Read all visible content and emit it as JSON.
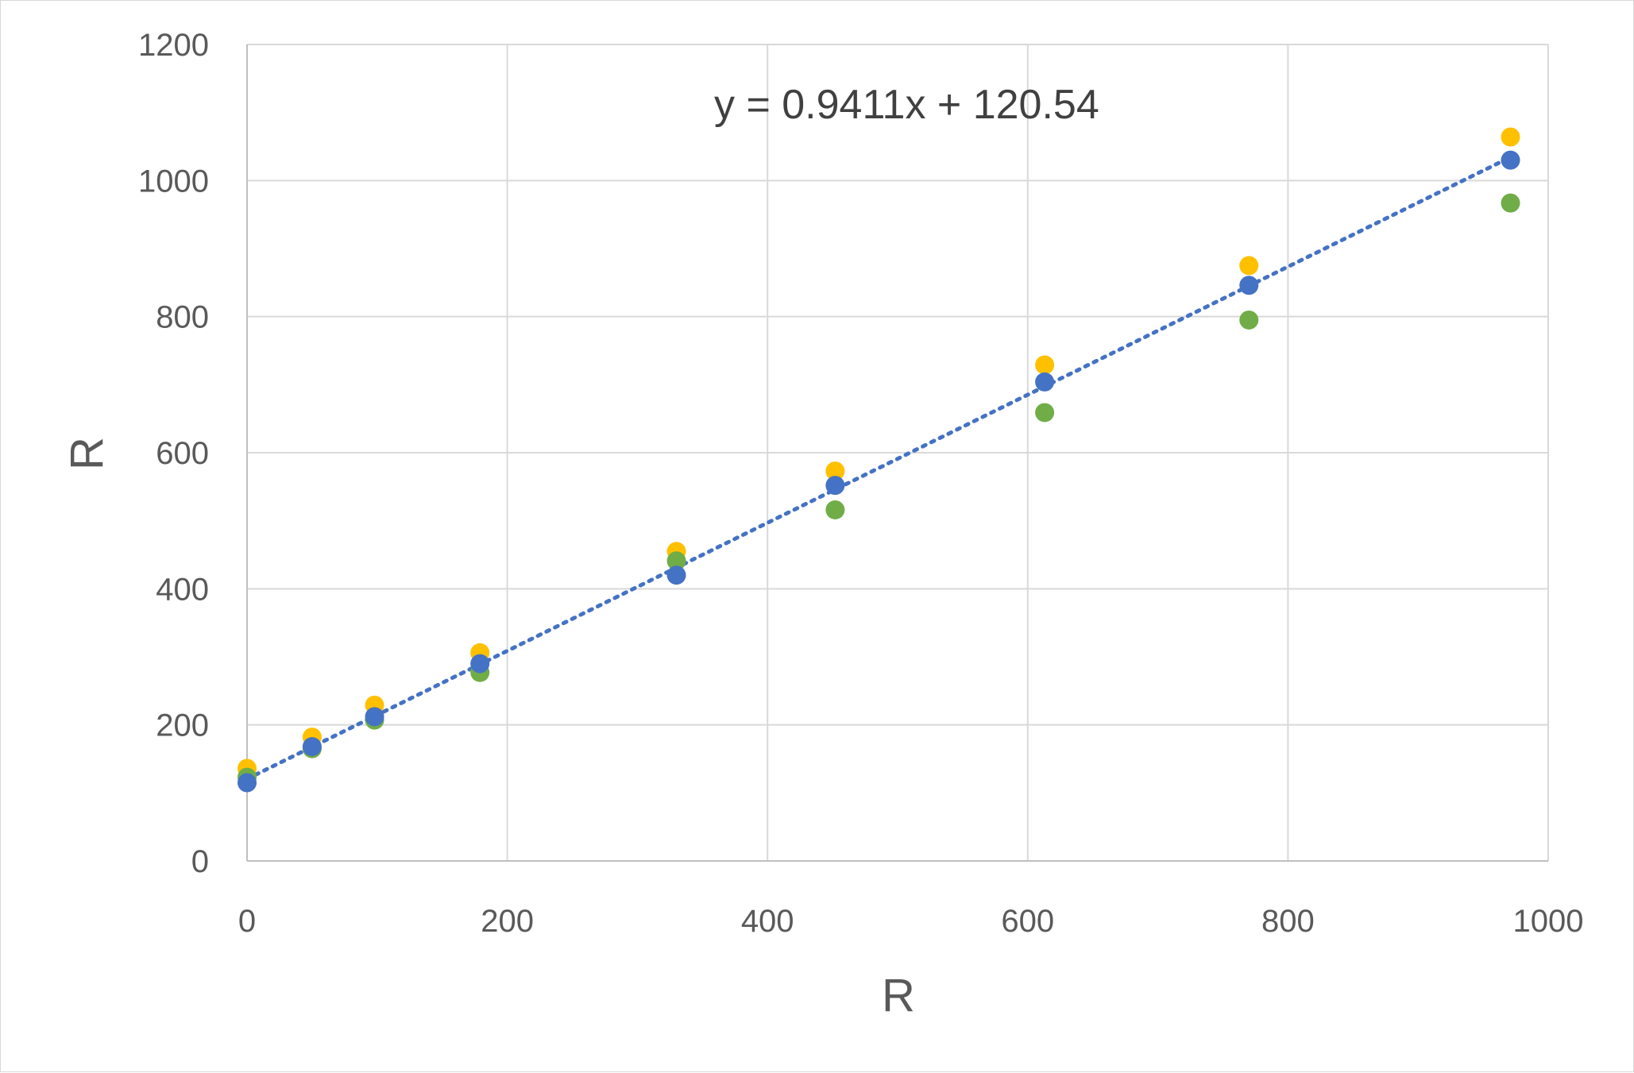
{
  "chart_data": {
    "type": "scatter",
    "xlabel": "R",
    "ylabel": "R",
    "xlim": [
      0,
      1000
    ],
    "ylim": [
      0,
      1200
    ],
    "x_ticks": [
      0,
      200,
      400,
      600,
      800,
      1000
    ],
    "y_ticks": [
      0,
      200,
      400,
      600,
      800,
      1000,
      1200
    ],
    "grid": true,
    "legend": "none",
    "series": [
      {
        "color": "#4472C4",
        "x": [
          0,
          50,
          98,
          179,
          330,
          452,
          613,
          770,
          971
        ],
        "y": [
          115,
          168,
          212,
          290,
          420,
          552,
          704,
          846,
          1030
        ]
      },
      {
        "color": "#FFC000",
        "x": [
          0,
          50,
          98,
          179,
          330,
          452,
          613,
          770,
          971
        ],
        "y": [
          136,
          182,
          229,
          306,
          455,
          573,
          729,
          875,
          1064
        ]
      },
      {
        "color": "#70AD47",
        "x": [
          0,
          50,
          98,
          179,
          330,
          452,
          613,
          770,
          971
        ],
        "y": [
          123,
          165,
          207,
          277,
          441,
          516,
          659,
          795,
          967
        ]
      }
    ],
    "trendline": {
      "type": "linear",
      "style": "dotted",
      "color": "#4472C4",
      "slope": 0.9411,
      "intercept": 120.54,
      "x_range": [
        0,
        971
      ],
      "label": "y = 0.9411x + 120.54"
    }
  }
}
